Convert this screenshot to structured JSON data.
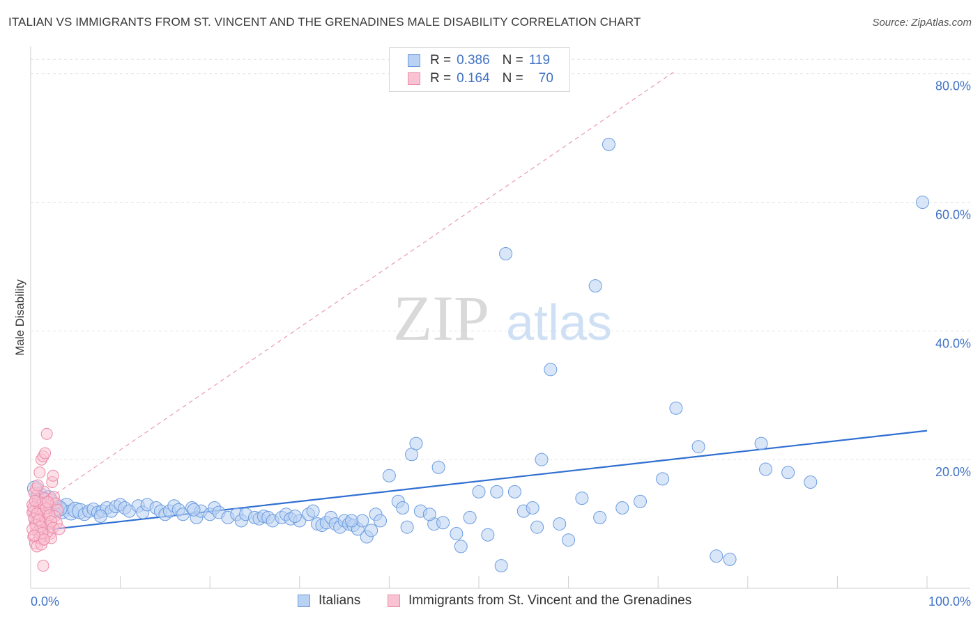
{
  "title": "ITALIAN VS IMMIGRANTS FROM ST. VINCENT AND THE GRENADINES MALE DISABILITY CORRELATION CHART",
  "source": "Source: ZipAtlas.com",
  "watermark": {
    "zip": "ZIP",
    "atlas": "atlas"
  },
  "legend": {
    "rows": [
      {
        "r_label": "R =",
        "r_value": "0.386",
        "n_label": "N =",
        "n_value": "119",
        "fill": "#b9d2f3",
        "stroke": "#6a9be0"
      },
      {
        "r_label": "R =",
        "r_value": "0.164",
        "n_label": "N =",
        "n_value": "70",
        "fill": "#f9c3d3",
        "stroke": "#ec8aa8"
      }
    ]
  },
  "bottom_legend": [
    {
      "label": "Italians",
      "fill": "#b9d2f3",
      "stroke": "#6a9be0"
    },
    {
      "label": "Immigrants from St. Vincent and the Grenadines",
      "fill": "#f9c3d3",
      "stroke": "#ec8aa8"
    }
  ],
  "chart_data": {
    "type": "scatter",
    "title": "ITALIAN VS IMMIGRANTS FROM ST. VINCENT AND THE GRENADINES MALE DISABILITY CORRELATION CHART",
    "ylabel": "Male Disability",
    "xlabel": "",
    "x_tick_labels": [
      "0.0%",
      "100.0%"
    ],
    "y_tick_labels": [
      "20.0%",
      "40.0%",
      "60.0%",
      "80.0%"
    ],
    "y_ticks": [
      20,
      40,
      60,
      80
    ],
    "xlim": [
      0,
      100
    ],
    "ylim": [
      0,
      83
    ],
    "grid": "horizontal dashed",
    "colors": {
      "italians": "#6a9be0",
      "italians_fill": "#b9d2f3",
      "svg": "#ec8aa8",
      "svg_fill": "#f9c3d3",
      "trend_blue": "#2f6fd1",
      "trend_pink": "#e89ab2",
      "axis_text": "#3f72c6"
    },
    "series": [
      {
        "name": "Italians",
        "points": [
          [
            0.5,
            15.5
          ],
          [
            1.0,
            14.5
          ],
          [
            1.5,
            13.5
          ],
          [
            2.0,
            14.0
          ],
          [
            2.5,
            13.0
          ],
          [
            3.0,
            12.5
          ],
          [
            3.5,
            12.0
          ],
          [
            4.0,
            12.8
          ],
          [
            4.5,
            11.8
          ],
          [
            5.0,
            12.2
          ],
          [
            5.5,
            12.0
          ],
          [
            6.0,
            11.5
          ],
          [
            6.5,
            12.0
          ],
          [
            7.0,
            12.3
          ],
          [
            7.5,
            11.8
          ],
          [
            8.0,
            12.0
          ],
          [
            8.5,
            12.5
          ],
          [
            9.0,
            12.0
          ],
          [
            9.5,
            12.7
          ],
          [
            10.0,
            13.0
          ],
          [
            10.5,
            12.5
          ],
          [
            11.0,
            12.0
          ],
          [
            12.0,
            12.8
          ],
          [
            12.5,
            11.8
          ],
          [
            13.0,
            13.0
          ],
          [
            14.0,
            12.5
          ],
          [
            14.5,
            12.0
          ],
          [
            15.0,
            11.5
          ],
          [
            15.5,
            12.0
          ],
          [
            16.0,
            12.8
          ],
          [
            16.5,
            12.2
          ],
          [
            17.0,
            11.5
          ],
          [
            18.0,
            12.5
          ],
          [
            18.5,
            11.0
          ],
          [
            19.0,
            12.0
          ],
          [
            20.0,
            11.5
          ],
          [
            20.5,
            12.5
          ],
          [
            21.0,
            11.8
          ],
          [
            22.0,
            11.0
          ],
          [
            23.0,
            11.5
          ],
          [
            23.5,
            10.5
          ],
          [
            24.0,
            11.5
          ],
          [
            25.0,
            11.0
          ],
          [
            25.5,
            10.8
          ],
          [
            26.0,
            11.2
          ],
          [
            26.5,
            11.0
          ],
          [
            27.0,
            10.5
          ],
          [
            28.0,
            11.0
          ],
          [
            28.5,
            11.5
          ],
          [
            29.0,
            10.8
          ],
          [
            30.0,
            10.5
          ],
          [
            31.0,
            11.5
          ],
          [
            31.5,
            12.0
          ],
          [
            32.0,
            10.0
          ],
          [
            32.5,
            9.8
          ],
          [
            33.0,
            10.2
          ],
          [
            33.5,
            11.0
          ],
          [
            34.0,
            10.0
          ],
          [
            34.5,
            9.5
          ],
          [
            35.0,
            10.5
          ],
          [
            35.5,
            10.0
          ],
          [
            36.0,
            9.8
          ],
          [
            36.5,
            9.2
          ],
          [
            37.0,
            10.5
          ],
          [
            37.5,
            8.0
          ],
          [
            38.0,
            9.0
          ],
          [
            38.5,
            11.5
          ],
          [
            39.0,
            10.5
          ],
          [
            40.0,
            17.5
          ],
          [
            41.0,
            13.5
          ],
          [
            41.5,
            12.5
          ],
          [
            42.0,
            9.5
          ],
          [
            42.5,
            20.8
          ],
          [
            43.0,
            22.5
          ],
          [
            43.5,
            12.0
          ],
          [
            45.0,
            10.0
          ],
          [
            45.5,
            18.8
          ],
          [
            46.0,
            10.2
          ],
          [
            47.5,
            8.5
          ],
          [
            49.0,
            11.0
          ],
          [
            50.0,
            15.0
          ],
          [
            51.0,
            8.3
          ],
          [
            52.0,
            15.0
          ],
          [
            53.0,
            52.0
          ],
          [
            54.0,
            15.0
          ],
          [
            55.0,
            12.0
          ],
          [
            56.5,
            9.5
          ],
          [
            57.0,
            20.0
          ],
          [
            58.0,
            34.0
          ],
          [
            60.0,
            7.5
          ],
          [
            61.5,
            14.0
          ],
          [
            63.0,
            47.0
          ],
          [
            63.5,
            11.0
          ],
          [
            68.0,
            13.5
          ],
          [
            70.5,
            17.0
          ],
          [
            72.0,
            28.0
          ],
          [
            74.5,
            22.0
          ],
          [
            76.5,
            5.0
          ],
          [
            78.0,
            4.5
          ],
          [
            81.5,
            22.5
          ],
          [
            82.0,
            18.5
          ],
          [
            84.5,
            18.0
          ],
          [
            87.0,
            16.5
          ],
          [
            99.5,
            60.0
          ],
          [
            59.0,
            10.0
          ],
          [
            66.0,
            12.5
          ],
          [
            64.5,
            69.0
          ],
          [
            52.5,
            3.5
          ],
          [
            35.8,
            10.5
          ],
          [
            29.5,
            11.2
          ],
          [
            18.2,
            12.2
          ],
          [
            7.8,
            11.2
          ],
          [
            3.2,
            12.4
          ],
          [
            2.2,
            13.5
          ],
          [
            1.2,
            13.8
          ],
          [
            0.8,
            12.6
          ],
          [
            44.5,
            11.5
          ],
          [
            56.0,
            12.5
          ],
          [
            48.0,
            6.5
          ]
        ]
      },
      {
        "name": "Immigrants from St. Vincent and the Grenadines",
        "points": [
          [
            0.2,
            13.0
          ],
          [
            0.3,
            12.0
          ],
          [
            0.4,
            11.0
          ],
          [
            0.5,
            10.0
          ],
          [
            0.6,
            9.5
          ],
          [
            0.7,
            14.5
          ],
          [
            0.8,
            13.5
          ],
          [
            0.9,
            12.5
          ],
          [
            1.0,
            11.5
          ],
          [
            1.1,
            10.5
          ],
          [
            1.2,
            9.0
          ],
          [
            1.3,
            8.0
          ],
          [
            1.4,
            7.5
          ],
          [
            1.5,
            15.0
          ],
          [
            1.6,
            14.0
          ],
          [
            1.7,
            13.0
          ],
          [
            1.8,
            12.0
          ],
          [
            1.9,
            11.0
          ],
          [
            2.0,
            10.0
          ],
          [
            2.1,
            9.5
          ],
          [
            2.2,
            8.5
          ],
          [
            2.3,
            7.8
          ],
          [
            2.4,
            16.5
          ],
          [
            2.5,
            17.5
          ],
          [
            0.3,
            8.0
          ],
          [
            0.5,
            7.0
          ],
          [
            0.7,
            6.5
          ],
          [
            0.9,
            9.0
          ],
          [
            1.1,
            12.2
          ],
          [
            1.3,
            13.2
          ],
          [
            1.5,
            11.2
          ],
          [
            1.7,
            10.2
          ],
          [
            1.9,
            8.8
          ],
          [
            2.1,
            12.8
          ],
          [
            2.3,
            13.8
          ],
          [
            0.4,
            14.8
          ],
          [
            0.6,
            15.5
          ],
          [
            0.8,
            16.0
          ],
          [
            1.0,
            18.0
          ],
          [
            1.2,
            20.0
          ],
          [
            1.4,
            20.5
          ],
          [
            1.6,
            21.0
          ],
          [
            1.8,
            24.0
          ],
          [
            0.2,
            11.8
          ],
          [
            0.4,
            10.8
          ],
          [
            0.6,
            9.8
          ],
          [
            0.8,
            8.8
          ],
          [
            1.0,
            7.8
          ],
          [
            1.2,
            6.8
          ],
          [
            1.4,
            3.5
          ],
          [
            2.6,
            14.2
          ],
          [
            2.8,
            13.2
          ],
          [
            3.0,
            12.2
          ],
          [
            2.7,
            11.2
          ],
          [
            2.9,
            10.2
          ],
          [
            0.3,
            12.6
          ],
          [
            0.5,
            13.6
          ],
          [
            0.7,
            11.6
          ],
          [
            0.9,
            10.6
          ],
          [
            1.1,
            9.6
          ],
          [
            1.3,
            8.6
          ],
          [
            1.5,
            7.6
          ],
          [
            1.7,
            12.4
          ],
          [
            1.9,
            13.4
          ],
          [
            2.1,
            11.4
          ],
          [
            2.3,
            10.4
          ],
          [
            2.5,
            9.4
          ],
          [
            0.2,
            9.2
          ],
          [
            0.4,
            8.2
          ],
          [
            3.2,
            9.2
          ]
        ]
      }
    ],
    "trend_lines": [
      {
        "series": "Italians",
        "style": "solid",
        "from": [
          0,
          8.8
        ],
        "to": [
          100,
          24.5
        ]
      },
      {
        "series": "Immigrants from St. Vincent and the Grenadines",
        "style": "dashed",
        "from": [
          0,
          12.0
        ],
        "to": [
          72,
          80.5
        ]
      }
    ]
  }
}
